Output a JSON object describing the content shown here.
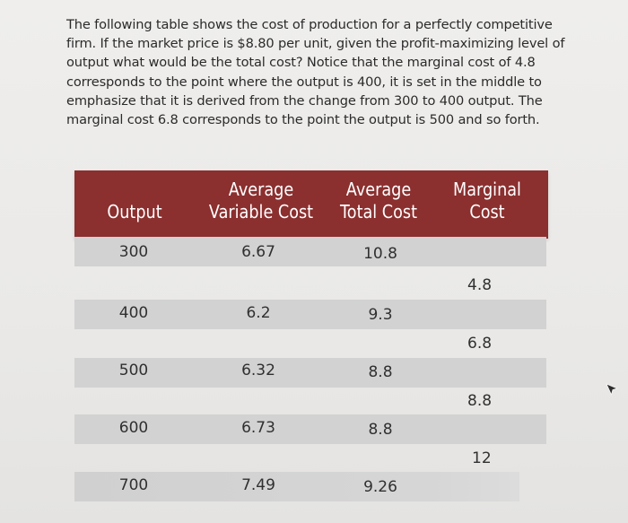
{
  "question": {
    "lines": [
      "The following table shows the cost of production for a perfectly competitive",
      "firm. If the market price is $8.80 per unit,  given the profit-maximizing level of",
      "output what would be the total cost? Notice that the marginal cost of 4.8",
      "corresponds to the point where the output is 400, it is set in the middle to",
      "emphasize that it is derived from the change from 300 to 400 output. The",
      "marginal cost 6.8 corresponds to the point the output is 500 and so forth."
    ]
  },
  "table": {
    "headers": {
      "output": [
        "Output"
      ],
      "avc": [
        "Average",
        "Variable Cost"
      ],
      "atc": [
        "Average",
        "Total Cost"
      ],
      "mc": [
        "Marginal",
        "Cost"
      ]
    },
    "header_color": "#8b2f2f",
    "rows": [
      {
        "output": "300",
        "avc": "6.67",
        "atc": "10.8"
      },
      {
        "output": "400",
        "avc": "6.2",
        "atc": "9.3"
      },
      {
        "output": "500",
        "avc": "6.32",
        "atc": "8.8"
      },
      {
        "output": "600",
        "avc": "6.73",
        "atc": "8.8"
      },
      {
        "output": "700",
        "avc": "7.49",
        "atc": "9.26"
      }
    ],
    "marginal_costs": [
      "4.8",
      "6.8",
      "8.8",
      "12"
    ]
  },
  "cursor_icon": "mouse-pointer-icon"
}
